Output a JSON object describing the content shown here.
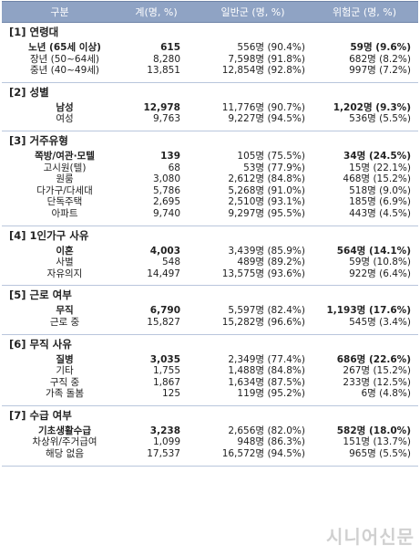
{
  "header": {
    "col_label": "구분",
    "col_total": "계(명, %)",
    "col_general": "일반군 (명, %)",
    "col_risk": "위험군 (명, %)"
  },
  "sections": [
    {
      "title": "[1] 연령대",
      "rows": [
        {
          "label": "노년 (65세 이상)",
          "total": "615",
          "general": "556명",
          "general_pct": "(90.4%)",
          "risk": "59명",
          "risk_pct": "(9.6%)",
          "bold": true
        },
        {
          "label": "장년 (50~64세)",
          "total": "8,280",
          "general": "7,598명",
          "general_pct": "(91.8%)",
          "risk": "682명",
          "risk_pct": "(8.2%)",
          "bold": false
        },
        {
          "label": "중년 (40~49세)",
          "total": "13,851",
          "general": "12,854명",
          "general_pct": "(92.8%)",
          "risk": "997명",
          "risk_pct": "(7.2%)",
          "bold": false
        }
      ]
    },
    {
      "title": "[2] 성별",
      "rows": [
        {
          "label": "남성",
          "total": "12,978",
          "general": "11,776명",
          "general_pct": "(90.7%)",
          "risk": "1,202명",
          "risk_pct": "(9.3%)",
          "bold": true
        },
        {
          "label": "여성",
          "total": "9,763",
          "general": "9,227명",
          "general_pct": "(94.5%)",
          "risk": "536명",
          "risk_pct": "(5.5%)",
          "bold": false
        }
      ]
    },
    {
      "title": "[3] 거주유형",
      "rows": [
        {
          "label": "쪽방/여관·모텔",
          "total": "139",
          "general": "105명",
          "general_pct": "(75.5%)",
          "risk": "34명",
          "risk_pct": "(24.5%)",
          "bold": true
        },
        {
          "label": "고시원(텔)",
          "total": "68",
          "general": "53명",
          "general_pct": "(77.9%)",
          "risk": "15명",
          "risk_pct": "(22.1%)",
          "bold": false
        },
        {
          "label": "원룸",
          "total": "3,080",
          "general": "2,612명",
          "general_pct": "(84.8%)",
          "risk": "468명",
          "risk_pct": "(15.2%)",
          "bold": false
        },
        {
          "label": "다가구/다세대",
          "total": "5,786",
          "general": "5,268명",
          "general_pct": "(91.0%)",
          "risk": "518명",
          "risk_pct": "(9.0%)",
          "bold": false
        },
        {
          "label": "단독주택",
          "total": "2,695",
          "general": "2,510명",
          "general_pct": "(93.1%)",
          "risk": "185명",
          "risk_pct": "(6.9%)",
          "bold": false
        },
        {
          "label": "아파트",
          "total": "9,740",
          "general": "9,297명",
          "general_pct": "(95.5%)",
          "risk": "443명",
          "risk_pct": "(4.5%)",
          "bold": false
        }
      ]
    },
    {
      "title": "[4] 1인가구 사유",
      "rows": [
        {
          "label": "이혼",
          "total": "4,003",
          "general": "3,439명",
          "general_pct": "(85.9%)",
          "risk": "564명",
          "risk_pct": "(14.1%)",
          "bold": true
        },
        {
          "label": "사별",
          "total": "548",
          "general": "489명",
          "general_pct": "(89.2%)",
          "risk": "59명",
          "risk_pct": "(10.8%)",
          "bold": false
        },
        {
          "label": "자유의지",
          "total": "14,497",
          "general": "13,575명",
          "general_pct": "(93.6%)",
          "risk": "922명",
          "risk_pct": "(6.4%)",
          "bold": false
        }
      ]
    },
    {
      "title": "[5] 근로 여부",
      "rows": [
        {
          "label": "무직",
          "total": "6,790",
          "general": "5,597명",
          "general_pct": "(82.4%)",
          "risk": "1,193명",
          "risk_pct": "(17.6%)",
          "bold": true
        },
        {
          "label": "근로 중",
          "total": "15,827",
          "general": "15,282명",
          "general_pct": "(96.6%)",
          "risk": "545명",
          "risk_pct": "(3.4%)",
          "bold": false
        }
      ]
    },
    {
      "title": "[6] 무직 사유",
      "rows": [
        {
          "label": "질병",
          "total": "3,035",
          "general": "2,349명",
          "general_pct": "(77.4%)",
          "risk": "686명",
          "risk_pct": "(22.6%)",
          "bold": true
        },
        {
          "label": "기타",
          "total": "1,755",
          "general": "1,488명",
          "general_pct": "(84.8%)",
          "risk": "267명",
          "risk_pct": "(15.2%)",
          "bold": false
        },
        {
          "label": "구직 중",
          "total": "1,867",
          "general": "1,634명",
          "general_pct": "(87.5%)",
          "risk": "233명",
          "risk_pct": "(12.5%)",
          "bold": false
        },
        {
          "label": "가족 돌봄",
          "total": "125",
          "general": "119명",
          "general_pct": "(95.2%)",
          "risk": "6명",
          "risk_pct": "(4.8%)",
          "bold": false
        }
      ]
    },
    {
      "title": "[7] 수급 여부",
      "rows": [
        {
          "label": "기초생활수급",
          "total": "3,238",
          "general": "2,656명",
          "general_pct": "(82.0%)",
          "risk": "582명",
          "risk_pct": "(18.0%)",
          "bold": true
        },
        {
          "label": "차상위/주거급여",
          "total": "1,099",
          "general": "948명",
          "general_pct": "(86.3%)",
          "risk": "151명",
          "risk_pct": "(13.7%)",
          "bold": false
        },
        {
          "label": "해당 없음",
          "total": "17,537",
          "general": "16,572명",
          "general_pct": "(94.5%)",
          "risk": "965명",
          "risk_pct": "(5.5%)",
          "bold": false
        }
      ]
    }
  ],
  "watermark": "시니어신문"
}
